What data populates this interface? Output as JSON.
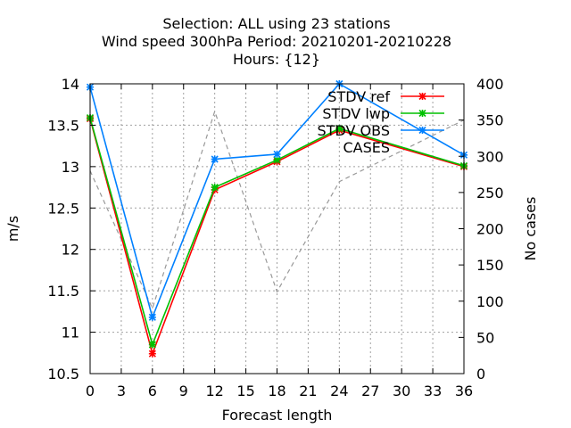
{
  "chart_data": {
    "type": "line",
    "title_lines": [
      "Selection: ALL using    23 stations",
      "Wind speed 300hPa   Period: 20210201-20210228",
      "Hours: {12}"
    ],
    "xlabel": "Forecast length",
    "ylabel": "m/s",
    "y2label": "No cases",
    "x": [
      0,
      6,
      12,
      18,
      24,
      36
    ],
    "xlim": [
      0,
      36
    ],
    "xticks": [
      0,
      3,
      6,
      9,
      12,
      15,
      18,
      21,
      24,
      27,
      30,
      33,
      36
    ],
    "ylim": [
      10.5,
      14
    ],
    "yticks": [
      "10.5",
      "11",
      "11.5",
      "12",
      "12.5",
      "13",
      "13.5",
      "14"
    ],
    "y2lim": [
      0,
      400
    ],
    "y2ticks": [
      "0",
      "50",
      "100",
      "150",
      "200",
      "250",
      "300",
      "350",
      "400"
    ],
    "grid": true,
    "legend_position": "top-right",
    "series": [
      {
        "name": "STDV ref",
        "color": "#ff0000",
        "marker": "x-star",
        "axis": "y",
        "values": [
          13.58,
          10.74,
          12.72,
          13.06,
          13.44,
          13.0
        ]
      },
      {
        "name": "STDV lwp",
        "color": "#00c000",
        "marker": "x-star",
        "axis": "y",
        "values": [
          13.59,
          10.85,
          12.75,
          13.08,
          13.46,
          13.01
        ]
      },
      {
        "name": "STDV OBS",
        "color": "#0080ff",
        "marker": "x-star",
        "axis": "y",
        "values": [
          13.96,
          11.18,
          13.09,
          13.15,
          14.0,
          13.14
        ]
      },
      {
        "name": "CASES",
        "color": "#999999",
        "marker": "none",
        "dashed": true,
        "axis": "y2",
        "values": [
          280,
          90,
          362,
          113,
          265,
          350
        ]
      }
    ]
  }
}
